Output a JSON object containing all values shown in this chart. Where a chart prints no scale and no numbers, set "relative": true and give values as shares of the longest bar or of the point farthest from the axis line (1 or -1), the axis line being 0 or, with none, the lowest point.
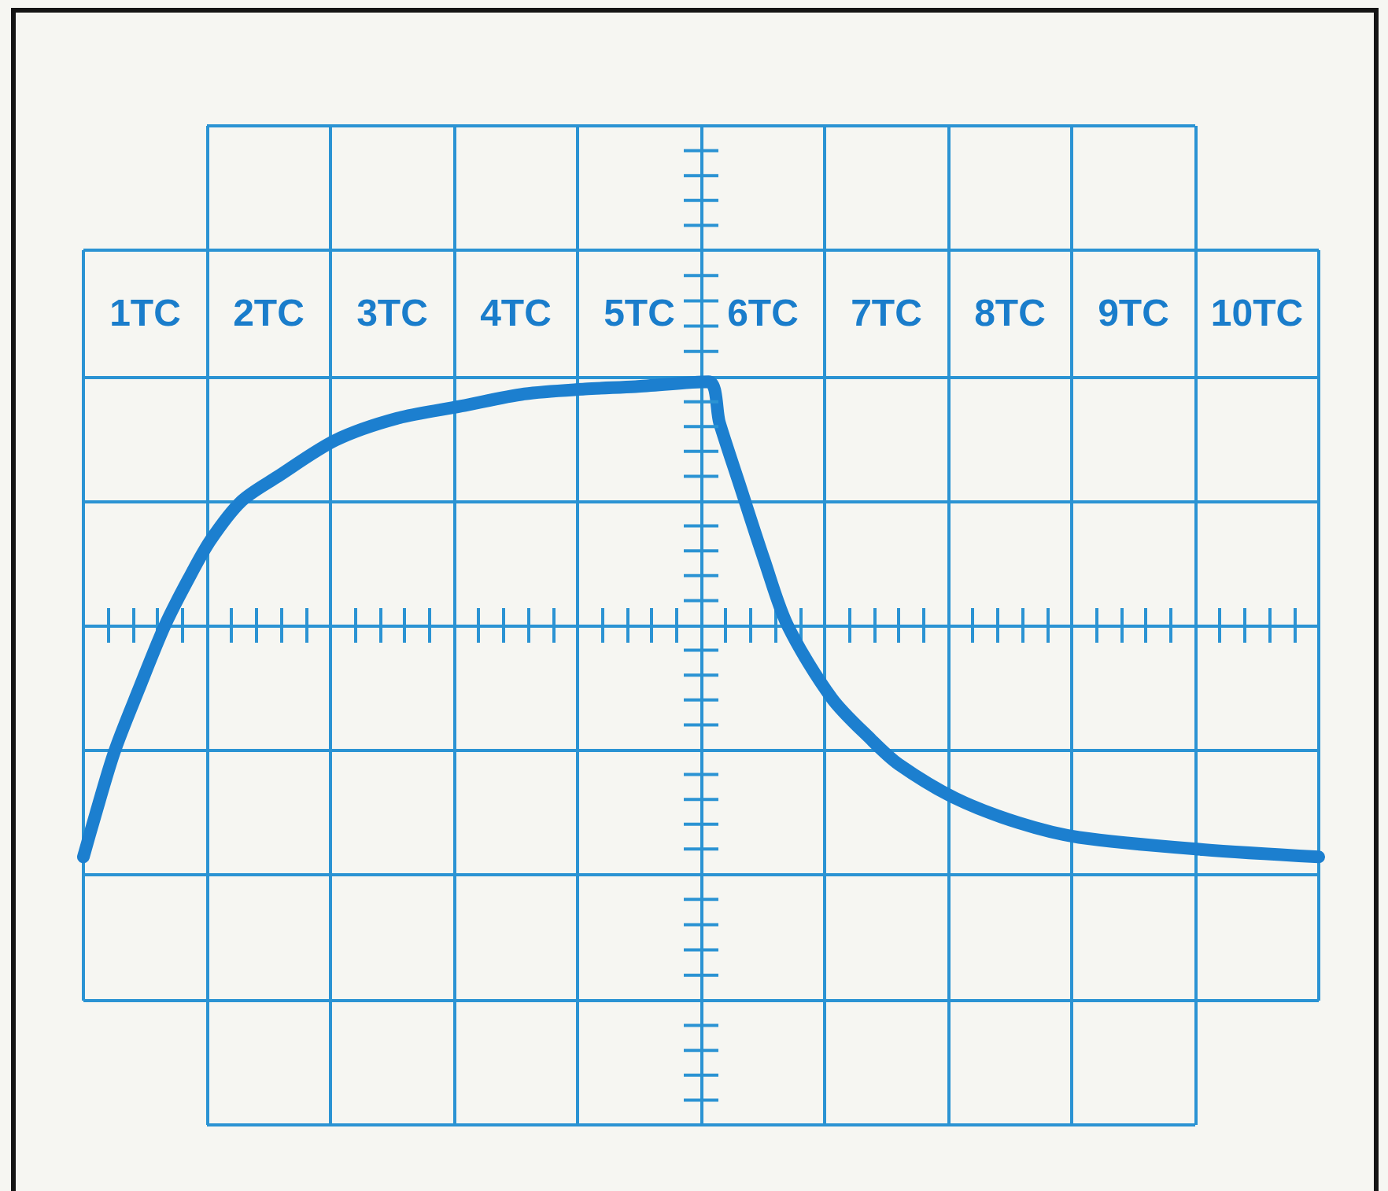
{
  "chart_data": {
    "type": "line",
    "relative": true,
    "xlim": [
      0,
      10
    ],
    "xticks": [
      {
        "value": 0,
        "label": null
      },
      {
        "value": 0.5,
        "label": "1TC"
      },
      {
        "value": 1,
        "label": null
      },
      {
        "value": 1.5,
        "label": "2TC"
      },
      {
        "value": 2,
        "label": null
      },
      {
        "value": 2.5,
        "label": "3TC"
      },
      {
        "value": 3,
        "label": null
      },
      {
        "value": 3.5,
        "label": "4TC"
      },
      {
        "value": 4,
        "label": null
      },
      {
        "value": 4.5,
        "label": "5TC"
      },
      {
        "value": 5,
        "label": null
      },
      {
        "value": 5.5,
        "label": "6TC"
      },
      {
        "value": 6,
        "label": null
      },
      {
        "value": 6.5,
        "label": "7TC"
      },
      {
        "value": 7,
        "label": null
      },
      {
        "value": 7.5,
        "label": "8TC"
      },
      {
        "value": 8,
        "label": null
      },
      {
        "value": 8.5,
        "label": "9TC"
      },
      {
        "value": 9,
        "label": null
      },
      {
        "value": 9.5,
        "label": "10TC"
      },
      {
        "value": 10,
        "label": null
      }
    ],
    "x": [
      0,
      0.09,
      0.25,
      0.45,
      0.66,
      0.85,
      1.03,
      1.28,
      1.57,
      2.04,
      2.54,
      3.06,
      3.57,
      4.06,
      4.47,
      5.06,
      5.15,
      5.31,
      5.51,
      5.7,
      6.06,
      6.38,
      6.6,
      7.06,
      7.57,
      8.06,
      9.06,
      10
    ],
    "values": [
      -0.95,
      -0.79,
      -0.52,
      -0.26,
      0,
      0.19,
      0.35,
      0.51,
      0.61,
      0.76,
      0.85,
      0.9,
      0.95,
      0.97,
      0.98,
      1,
      0.83,
      0.58,
      0.27,
      0,
      -0.3,
      -0.47,
      -0.57,
      -0.71,
      -0.81,
      -0.87,
      -0.92,
      -0.95
    ],
    "color": "#1c7fcf",
    "ref_lines": [
      {
        "axis": "y",
        "value": -2.05,
        "color": "#2b93d3"
      },
      {
        "axis": "y",
        "value": -1.54,
        "color": "#2b93d3"
      },
      {
        "axis": "y",
        "value": -1.02,
        "color": "#2b93d3"
      },
      {
        "axis": "y",
        "value": -0.51,
        "color": "#2b93d3"
      },
      {
        "axis": "y",
        "value": 0.51,
        "color": "#2b93d3"
      },
      {
        "axis": "y",
        "value": 1.02,
        "color": "#2b93d3"
      },
      {
        "axis": "y",
        "value": 1.54,
        "color": "#2b93d3"
      },
      {
        "axis": "y",
        "value": 2.05,
        "color": "#2b93d3"
      }
    ],
    "grid": true,
    "marker": "none",
    "line_style": "solid"
  }
}
